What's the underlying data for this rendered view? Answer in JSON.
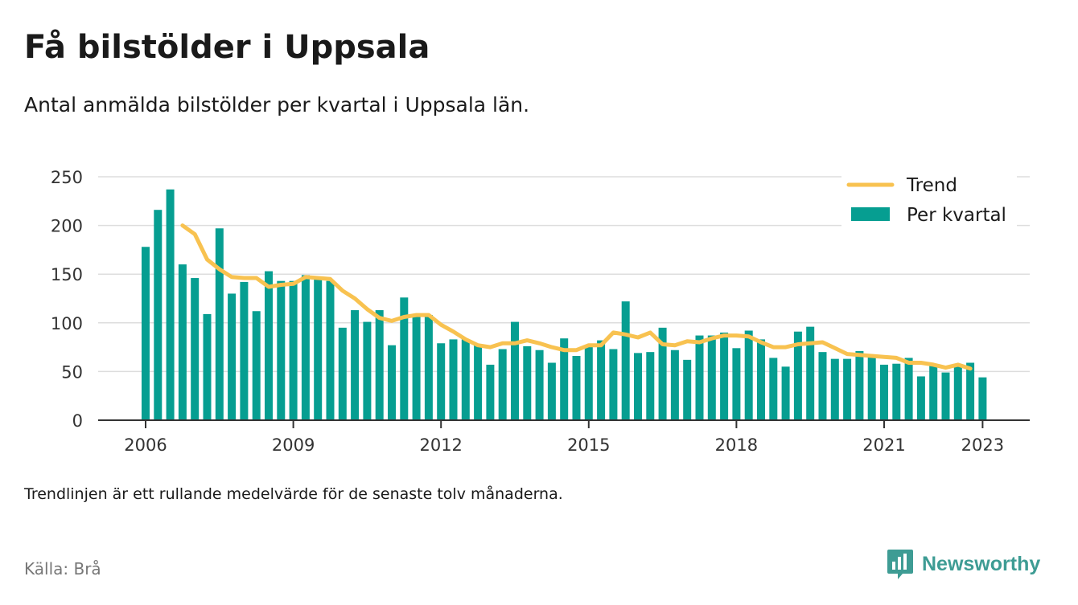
{
  "title": "Få bilstölder i Uppsala",
  "subtitle": "Antal anmälda bilstölder per kvartal i Uppsala län.",
  "footnote": "Trendlinjen är ett rullande medelvärde för de senaste tolv månaderna.",
  "source": "Källa: Brå",
  "brand": {
    "name": "Newsworthy",
    "icon": "bar-chart-speech-bubble-icon",
    "color": "#3e9c94"
  },
  "chart_data": {
    "type": "bar",
    "grid": "horizontal",
    "legend_position": "top-right",
    "x_start": "2006 Q1",
    "ylim": [
      0,
      250
    ],
    "yticks": [
      "0",
      "50",
      "100",
      "150",
      "200",
      "250"
    ],
    "xticks": [
      "2006",
      "2009",
      "2012",
      "2015",
      "2018",
      "2021",
      "2023"
    ],
    "series": [
      {
        "name": "Per kvartal",
        "kind": "bar",
        "color": "#069e91",
        "values": [
          178,
          216,
          237,
          160,
          146,
          109,
          197,
          130,
          142,
          112,
          153,
          143,
          143,
          149,
          146,
          143,
          95,
          113,
          101,
          113,
          77,
          126,
          108,
          108,
          79,
          83,
          83,
          78,
          57,
          73,
          101,
          76,
          72,
          59,
          84,
          66,
          77,
          82,
          73,
          122,
          69,
          70,
          95,
          72,
          62,
          87,
          87,
          90,
          74,
          92,
          83,
          64,
          55,
          91,
          96,
          70,
          63,
          63,
          71,
          66,
          57,
          58,
          64,
          45,
          56,
          49,
          55,
          59,
          44
        ]
      },
      {
        "name": "Trend",
        "kind": "line",
        "color": "#f8c250",
        "start_index": 3,
        "values": [
          200,
          191,
          165,
          155,
          147,
          146,
          146,
          137,
          139,
          140,
          147,
          146,
          145,
          133,
          125,
          114,
          105,
          102,
          106,
          108,
          108,
          98,
          91,
          83,
          77,
          75,
          79,
          79,
          82,
          79,
          75,
          72,
          72,
          77,
          77,
          90,
          88,
          85,
          90,
          78,
          77,
          81,
          80,
          84,
          87,
          87,
          86,
          80,
          75,
          75,
          78,
          79,
          80,
          74,
          68,
          67,
          66,
          65,
          64,
          59,
          59,
          57,
          54,
          57,
          53
        ]
      }
    ]
  }
}
